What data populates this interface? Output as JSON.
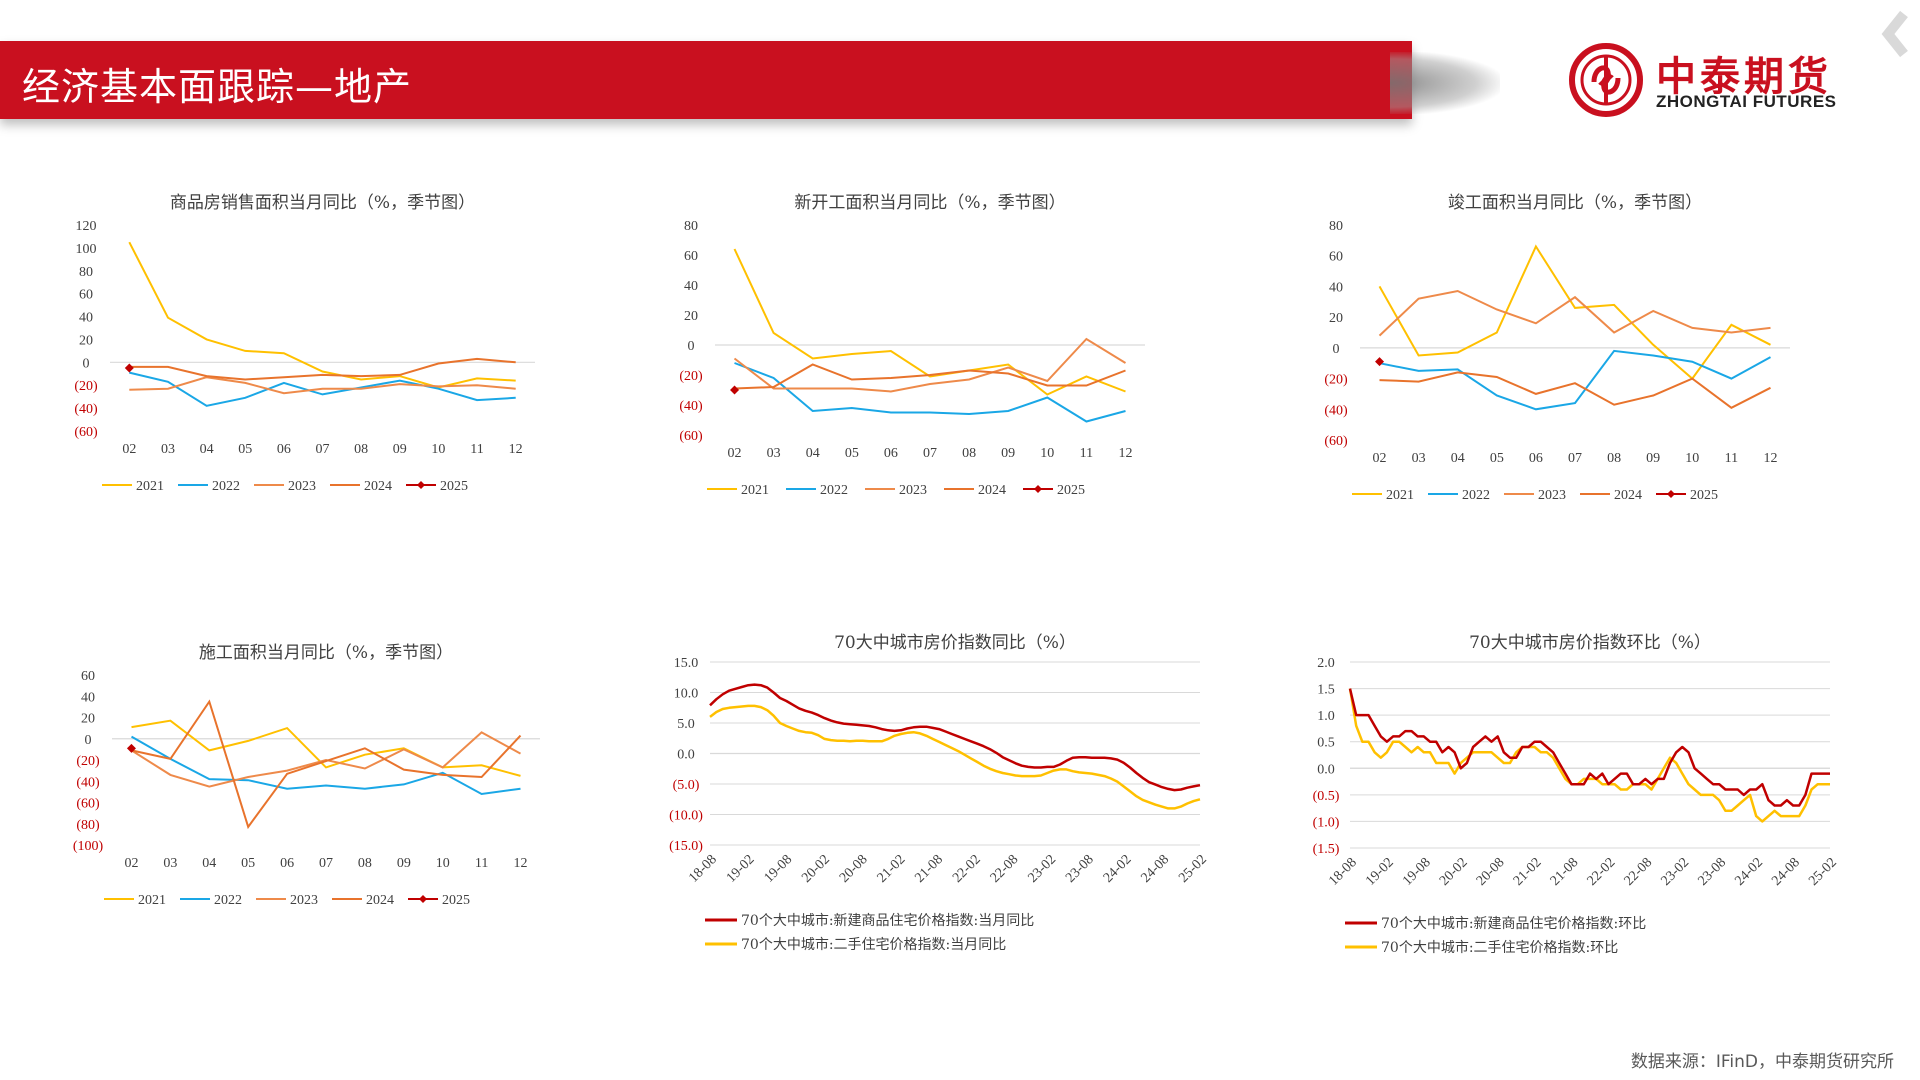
{
  "header": {
    "title": "经济基本面跟踪—地产"
  },
  "logo": {
    "cn": "中泰期货",
    "en": "ZHONGTAI FUTURES"
  },
  "colors": {
    "brand_red": "#c9101f",
    "y2021": "#ffc000",
    "y2022": "#1aa7e6",
    "y2023": "#ee8a4a",
    "y2024": "#e8732c",
    "y2025": "#c00000",
    "new_home": "#c00000",
    "second_home": "#ffc000"
  },
  "source": "数据来源：IFinD，中泰期货研究所",
  "chart_data": [
    {
      "type": "line",
      "title": "商品房销售面积当月同比（%，季节图）",
      "categories": [
        "02",
        "03",
        "04",
        "05",
        "06",
        "07",
        "08",
        "09",
        "10",
        "11",
        "12"
      ],
      "ylim": [
        -60,
        120
      ],
      "yticks": [
        120,
        100,
        80,
        60,
        40,
        20,
        0,
        -20,
        -40,
        -60
      ],
      "ytick_labels": [
        "120",
        "100",
        "80",
        "60",
        "40",
        "20",
        "0",
        "(20)",
        "(40)",
        "(60)"
      ],
      "series": [
        {
          "name": "2021",
          "color": "#ffc000",
          "values": [
            105,
            39,
            20,
            10,
            8,
            -8,
            -15,
            -12,
            -22,
            -14,
            -16
          ]
        },
        {
          "name": "2022",
          "color": "#1aa7e6",
          "values": [
            -9,
            -17,
            -38,
            -31,
            -18,
            -28,
            -22,
            -16,
            -23,
            -33,
            -31
          ]
        },
        {
          "name": "2023",
          "color": "#ee8a4a",
          "values": [
            -24,
            -23,
            -13,
            -18,
            -27,
            -23,
            -23,
            -19,
            -21,
            -20,
            -23
          ]
        },
        {
          "name": "2024",
          "color": "#e8732c",
          "values": [
            -4,
            -4,
            -12,
            -15,
            -13,
            -11,
            -12,
            -11,
            -1,
            3,
            0
          ]
        },
        {
          "name": "2025",
          "color": "#c00000",
          "marker": true,
          "values": [
            -5,
            null,
            null,
            null,
            null,
            null,
            null,
            null,
            null,
            null,
            null
          ]
        }
      ]
    },
    {
      "type": "line",
      "title": "新开工面积当月同比（%，季节图）",
      "categories": [
        "02",
        "03",
        "04",
        "05",
        "06",
        "07",
        "08",
        "09",
        "10",
        "11",
        "12"
      ],
      "ylim": [
        -60,
        80
      ],
      "yticks": [
        80,
        60,
        40,
        20,
        0,
        -20,
        -40,
        -60
      ],
      "ytick_labels": [
        "80",
        "60",
        "40",
        "20",
        "0",
        "(20)",
        "(40)",
        "(60)"
      ],
      "series": [
        {
          "name": "2021",
          "color": "#ffc000",
          "values": [
            64,
            8,
            -9,
            -6,
            -4,
            -21,
            -17,
            -13,
            -33,
            -21,
            -31
          ]
        },
        {
          "name": "2022",
          "color": "#1aa7e6",
          "values": [
            -12,
            -22,
            -44,
            -42,
            -45,
            -45,
            -46,
            -44,
            -35,
            -51,
            -44
          ]
        },
        {
          "name": "2023",
          "color": "#ee8a4a",
          "values": [
            -9,
            -29,
            -29,
            -29,
            -31,
            -26,
            -23,
            -15,
            -24,
            4,
            -12
          ]
        },
        {
          "name": "2024",
          "color": "#e8732c",
          "values": [
            -29,
            -28,
            -13,
            -23,
            -22,
            -20,
            -17,
            -19,
            -27,
            -27,
            -17
          ]
        },
        {
          "name": "2025",
          "color": "#c00000",
          "marker": true,
          "values": [
            -30,
            null,
            null,
            null,
            null,
            null,
            null,
            null,
            null,
            null,
            null
          ]
        }
      ]
    },
    {
      "type": "line",
      "title": "竣工面积当月同比（%，季节图）",
      "categories": [
        "02",
        "03",
        "04",
        "05",
        "06",
        "07",
        "08",
        "09",
        "10",
        "11",
        "12"
      ],
      "ylim": [
        -60,
        80
      ],
      "yticks": [
        80,
        60,
        40,
        20,
        0,
        -20,
        -40,
        -60
      ],
      "ytick_labels": [
        "80",
        "60",
        "40",
        "20",
        "0",
        "(20)",
        "(40)",
        "(60)"
      ],
      "series": [
        {
          "name": "2021",
          "color": "#ffc000",
          "values": [
            40,
            -5,
            -3,
            10,
            66,
            26,
            28,
            2,
            -20,
            15,
            2
          ]
        },
        {
          "name": "2022",
          "color": "#1aa7e6",
          "values": [
            -10,
            -15,
            -14,
            -31,
            -40,
            -36,
            -2,
            -5,
            -9,
            -20,
            -6
          ]
        },
        {
          "name": "2023",
          "color": "#ee8a4a",
          "values": [
            8,
            32,
            37,
            25,
            16,
            33,
            10,
            24,
            13,
            10,
            13
          ]
        },
        {
          "name": "2024",
          "color": "#e8732c",
          "values": [
            -21,
            -22,
            -16,
            -19,
            -30,
            -23,
            -37,
            -31,
            -20,
            -39,
            -26
          ]
        },
        {
          "name": "2025",
          "color": "#c00000",
          "marker": true,
          "values": [
            -9,
            null,
            null,
            null,
            null,
            null,
            null,
            null,
            null,
            null,
            null
          ]
        }
      ]
    },
    {
      "type": "line",
      "title": "施工面积当月同比（%，季节图）",
      "categories": [
        "02",
        "03",
        "04",
        "05",
        "06",
        "07",
        "08",
        "09",
        "10",
        "11",
        "12"
      ],
      "ylim": [
        -100,
        60
      ],
      "yticks": [
        60,
        40,
        20,
        0,
        -20,
        -40,
        -60,
        -80,
        -100
      ],
      "ytick_labels": [
        "60",
        "40",
        "20",
        "0",
        "(20)",
        "(40)",
        "(60)",
        "(80)",
        "(100)"
      ],
      "series": [
        {
          "name": "2021",
          "color": "#ffc000",
          "values": [
            11,
            17,
            -11,
            -2,
            10,
            -27,
            -15,
            -9,
            -27,
            -25,
            -35
          ]
        },
        {
          "name": "2022",
          "color": "#1aa7e6",
          "values": [
            2,
            -19,
            -38,
            -39,
            -47,
            -44,
            -47,
            -43,
            -32,
            -52,
            -47
          ]
        },
        {
          "name": "2023",
          "color": "#ee8a4a",
          "values": [
            -11,
            -34,
            -45,
            -36,
            -30,
            -20,
            -28,
            -10,
            -27,
            6,
            -14
          ]
        },
        {
          "name": "2024",
          "color": "#e8732c",
          "values": [
            -11,
            -19,
            35,
            -83,
            -33,
            -21,
            -9,
            -29,
            -34,
            -36,
            3
          ]
        },
        {
          "name": "2025",
          "color": "#c00000",
          "marker": true,
          "values": [
            -9,
            null,
            null,
            null,
            null,
            null,
            null,
            null,
            null,
            null,
            null
          ]
        }
      ]
    },
    {
      "type": "line",
      "title": "70大中城市房价指数同比（%）",
      "xticks": [
        "18-08",
        "19-02",
        "19-08",
        "20-02",
        "20-08",
        "21-02",
        "21-08",
        "22-02",
        "22-08",
        "23-02",
        "23-08",
        "24-02",
        "24-08",
        "25-02"
      ],
      "ylim": [
        -15,
        15
      ],
      "yticks": [
        15,
        10,
        5,
        0,
        -5,
        -10,
        -15
      ],
      "ytick_labels": [
        "15.0",
        "10.0",
        "5.0",
        "0.0",
        "(5.0)",
        "(10.0)",
        "(15.0)"
      ],
      "series": [
        {
          "name": "70个大中城市:新建商品住宅价格指数:当月同比",
          "color": "#c00000",
          "values": [
            7.9,
            8.9,
            9.7,
            10.3,
            10.6,
            10.9,
            11.2,
            11.3,
            11.2,
            10.8,
            10.0,
            9.1,
            8.6,
            8.0,
            7.4,
            7.0,
            6.7,
            6.3,
            5.8,
            5.4,
            5.1,
            4.9,
            4.8,
            4.7,
            4.6,
            4.5,
            4.3,
            4.0,
            3.8,
            3.7,
            3.8,
            4.1,
            4.3,
            4.4,
            4.4,
            4.2,
            4.0,
            3.6,
            3.2,
            2.8,
            2.4,
            2.0,
            1.6,
            1.2,
            0.7,
            0.1,
            -0.6,
            -1.1,
            -1.6,
            -2.0,
            -2.2,
            -2.3,
            -2.3,
            -2.2,
            -2.2,
            -1.8,
            -1.2,
            -0.7,
            -0.6,
            -0.6,
            -0.7,
            -0.7,
            -0.7,
            -0.8,
            -1.0,
            -1.5,
            -2.3,
            -3.2,
            -4.0,
            -4.7,
            -5.1,
            -5.5,
            -5.8,
            -6.0,
            -5.9,
            -5.6,
            -5.4,
            -5.2
          ]
        },
        {
          "name": "70个大中城市:二手住宅价格指数:当月同比",
          "color": "#ffc000",
          "values": [
            6.0,
            6.8,
            7.3,
            7.5,
            7.6,
            7.7,
            7.8,
            7.8,
            7.6,
            7.1,
            6.2,
            5.0,
            4.5,
            4.1,
            3.7,
            3.5,
            3.4,
            3.0,
            2.4,
            2.2,
            2.1,
            2.1,
            2.0,
            2.1,
            2.1,
            2.0,
            2.0,
            2.0,
            2.4,
            2.9,
            3.2,
            3.4,
            3.5,
            3.3,
            2.9,
            2.4,
            1.9,
            1.4,
            0.9,
            0.4,
            -0.2,
            -0.8,
            -1.4,
            -2.0,
            -2.5,
            -2.9,
            -3.2,
            -3.4,
            -3.6,
            -3.7,
            -3.7,
            -3.7,
            -3.6,
            -3.2,
            -2.8,
            -2.6,
            -2.6,
            -2.9,
            -3.1,
            -3.2,
            -3.3,
            -3.5,
            -3.7,
            -4.1,
            -4.6,
            -5.4,
            -6.2,
            -7.0,
            -7.6,
            -8.0,
            -8.4,
            -8.7,
            -9.0,
            -9.0,
            -8.7,
            -8.2,
            -7.8,
            -7.5
          ]
        }
      ]
    },
    {
      "type": "line",
      "title": "70大中城市房价指数环比（%）",
      "xticks": [
        "18-08",
        "19-02",
        "19-08",
        "20-02",
        "20-08",
        "21-02",
        "21-08",
        "22-02",
        "22-08",
        "23-02",
        "23-08",
        "24-02",
        "24-08",
        "25-02"
      ],
      "ylim": [
        -1.5,
        2.0
      ],
      "yticks": [
        2.0,
        1.5,
        1.0,
        0.5,
        0.0,
        -0.5,
        -1.0,
        -1.5
      ],
      "ytick_labels": [
        "2.0",
        "1.5",
        "1.0",
        "0.5",
        "0.0",
        "(0.5)",
        "(1.0)",
        "(1.5)"
      ],
      "series": [
        {
          "name": "70个大中城市:新建商品住宅价格指数:环比",
          "color": "#c00000",
          "values": [
            1.5,
            1.0,
            1.0,
            1.0,
            0.8,
            0.6,
            0.5,
            0.6,
            0.6,
            0.7,
            0.7,
            0.6,
            0.6,
            0.5,
            0.5,
            0.3,
            0.4,
            0.3,
            0.0,
            0.1,
            0.4,
            0.5,
            0.6,
            0.5,
            0.6,
            0.3,
            0.2,
            0.2,
            0.4,
            0.4,
            0.5,
            0.5,
            0.4,
            0.3,
            0.1,
            -0.1,
            -0.3,
            -0.3,
            -0.3,
            -0.1,
            -0.2,
            -0.1,
            -0.3,
            -0.2,
            -0.1,
            -0.1,
            -0.3,
            -0.3,
            -0.2,
            -0.3,
            -0.2,
            -0.2,
            0.1,
            0.3,
            0.4,
            0.3,
            0.0,
            -0.1,
            -0.2,
            -0.3,
            -0.3,
            -0.4,
            -0.4,
            -0.4,
            -0.5,
            -0.4,
            -0.4,
            -0.3,
            -0.6,
            -0.7,
            -0.7,
            -0.6,
            -0.7,
            -0.7,
            -0.5,
            -0.1,
            -0.1,
            -0.1,
            -0.1
          ]
        },
        {
          "name": "70个大中城市:二手住宅价格指数:环比",
          "color": "#ffc000",
          "values": [
            1.5,
            0.8,
            0.5,
            0.5,
            0.3,
            0.2,
            0.3,
            0.5,
            0.5,
            0.4,
            0.3,
            0.4,
            0.3,
            0.3,
            0.1,
            0.1,
            0.1,
            -0.1,
            0.1,
            0.2,
            0.3,
            0.3,
            0.3,
            0.3,
            0.2,
            0.1,
            0.1,
            0.3,
            0.4,
            0.4,
            0.4,
            0.3,
            0.3,
            0.2,
            0.0,
            -0.2,
            -0.3,
            -0.3,
            -0.2,
            -0.2,
            -0.2,
            -0.3,
            -0.3,
            -0.3,
            -0.4,
            -0.4,
            -0.3,
            -0.3,
            -0.3,
            -0.4,
            -0.2,
            0.0,
            0.2,
            0.1,
            -0.1,
            -0.3,
            -0.4,
            -0.5,
            -0.5,
            -0.5,
            -0.6,
            -0.8,
            -0.8,
            -0.7,
            -0.6,
            -0.5,
            -0.9,
            -1.0,
            -0.9,
            -0.8,
            -0.9,
            -0.9,
            -0.9,
            -0.9,
            -0.7,
            -0.4,
            -0.3,
            -0.3,
            -0.3
          ]
        }
      ]
    }
  ]
}
